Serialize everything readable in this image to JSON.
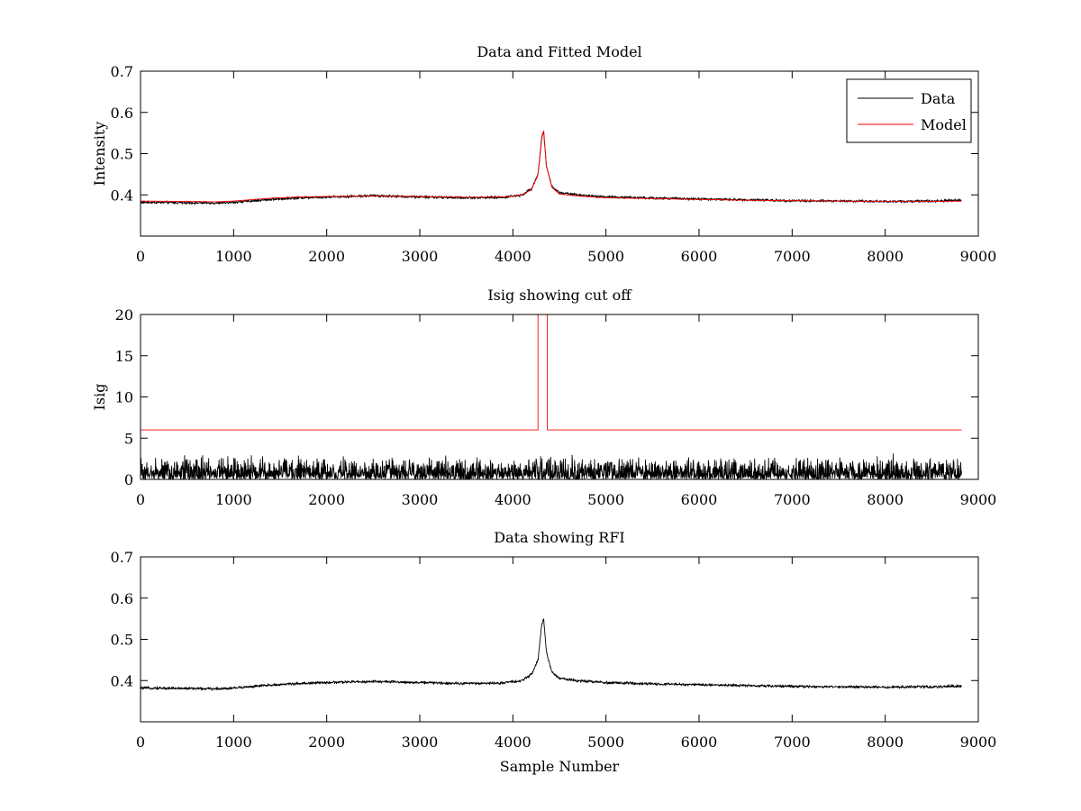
{
  "chart_data": [
    {
      "type": "line",
      "title": "Data and Fitted Model",
      "xlabel": "",
      "ylabel": "Intensity",
      "xlim": [
        0,
        9000
      ],
      "ylim": [
        0.3,
        0.7
      ],
      "xticks": [
        0,
        1000,
        2000,
        3000,
        4000,
        5000,
        6000,
        7000,
        8000,
        9000
      ],
      "yticks": [
        0.4,
        0.5,
        0.6,
        0.7
      ],
      "yticklabels": [
        "0.4",
        "0.5",
        "0.6",
        "0.7"
      ],
      "legend": "top-right",
      "grid": false,
      "series": [
        {
          "name": "Data",
          "color": "#000000",
          "noise_amplitude": 0.004,
          "points": [
            [
              0,
              0.382
            ],
            [
              500,
              0.381
            ],
            [
              800,
              0.38
            ],
            [
              1000,
              0.382
            ],
            [
              1400,
              0.389
            ],
            [
              1700,
              0.393
            ],
            [
              2000,
              0.395
            ],
            [
              2500,
              0.398
            ],
            [
              3000,
              0.395
            ],
            [
              3500,
              0.393
            ],
            [
              3900,
              0.394
            ],
            [
              4100,
              0.4
            ],
            [
              4200,
              0.415
            ],
            [
              4270,
              0.45
            ],
            [
              4310,
              0.54
            ],
            [
              4330,
              0.555
            ],
            [
              4360,
              0.47
            ],
            [
              4420,
              0.42
            ],
            [
              4500,
              0.405
            ],
            [
              4700,
              0.4
            ],
            [
              5000,
              0.395
            ],
            [
              5500,
              0.392
            ],
            [
              6000,
              0.39
            ],
            [
              6500,
              0.388
            ],
            [
              7000,
              0.386
            ],
            [
              7500,
              0.385
            ],
            [
              8000,
              0.384
            ],
            [
              8500,
              0.385
            ],
            [
              8820,
              0.387
            ]
          ]
        },
        {
          "name": "Model",
          "color": "#ff0000",
          "noise_amplitude": 0,
          "points": [
            [
              0,
              0.385
            ],
            [
              500,
              0.384
            ],
            [
              800,
              0.383
            ],
            [
              1000,
              0.385
            ],
            [
              1400,
              0.392
            ],
            [
              1700,
              0.395
            ],
            [
              2000,
              0.396
            ],
            [
              2500,
              0.397
            ],
            [
              3000,
              0.396
            ],
            [
              3500,
              0.394
            ],
            [
              3900,
              0.395
            ],
            [
              4100,
              0.4
            ],
            [
              4200,
              0.413
            ],
            [
              4270,
              0.448
            ],
            [
              4310,
              0.535
            ],
            [
              4330,
              0.56
            ],
            [
              4360,
              0.47
            ],
            [
              4420,
              0.418
            ],
            [
              4500,
              0.402
            ],
            [
              4700,
              0.397
            ],
            [
              5000,
              0.393
            ],
            [
              5500,
              0.391
            ],
            [
              6000,
              0.389
            ],
            [
              6500,
              0.387
            ],
            [
              7000,
              0.386
            ],
            [
              7500,
              0.385
            ],
            [
              8000,
              0.384
            ],
            [
              8500,
              0.384
            ],
            [
              8820,
              0.385
            ]
          ]
        }
      ]
    },
    {
      "type": "line",
      "title": "Isig showing cut off",
      "xlabel": "",
      "ylabel": "Isig",
      "xlim": [
        0,
        9000
      ],
      "ylim": [
        0,
        20
      ],
      "xticks": [
        0,
        1000,
        2000,
        3000,
        4000,
        5000,
        6000,
        7000,
        8000,
        9000
      ],
      "yticks": [
        0,
        5,
        10,
        15,
        20
      ],
      "yticklabels": [
        "0",
        "5",
        "10",
        "15",
        "20"
      ],
      "grid": false,
      "series": [
        {
          "name": "",
          "color": "#000000",
          "style": "noise",
          "x_range": [
            0,
            8820
          ],
          "noise_max": 3.3
        },
        {
          "name": "",
          "color": "#ff0000",
          "style": "step",
          "points": [
            [
              0,
              6
            ],
            [
              4270,
              6
            ],
            [
              4270,
              20
            ],
            [
              4370,
              20
            ],
            [
              4370,
              6
            ],
            [
              8820,
              6
            ]
          ]
        }
      ]
    },
    {
      "type": "line",
      "title": "Data showing RFI",
      "xlabel": "Sample Number",
      "ylabel": "",
      "xlim": [
        0,
        9000
      ],
      "ylim": [
        0.3,
        0.7
      ],
      "xticks": [
        0,
        1000,
        2000,
        3000,
        4000,
        5000,
        6000,
        7000,
        8000,
        9000
      ],
      "yticks": [
        0.4,
        0.5,
        0.6,
        0.7
      ],
      "yticklabels": [
        "0.4",
        "0.5",
        "0.6",
        "0.7"
      ],
      "grid": false,
      "series": [
        {
          "name": "",
          "color": "#000000",
          "noise_amplitude": 0.004,
          "points": [
            [
              0,
              0.382
            ],
            [
              500,
              0.381
            ],
            [
              800,
              0.38
            ],
            [
              1000,
              0.382
            ],
            [
              1400,
              0.389
            ],
            [
              1700,
              0.393
            ],
            [
              2000,
              0.395
            ],
            [
              2500,
              0.398
            ],
            [
              3000,
              0.395
            ],
            [
              3500,
              0.393
            ],
            [
              3900,
              0.394
            ],
            [
              4100,
              0.4
            ],
            [
              4200,
              0.415
            ],
            [
              4270,
              0.45
            ],
            [
              4310,
              0.535
            ],
            [
              4330,
              0.55
            ],
            [
              4360,
              0.47
            ],
            [
              4420,
              0.42
            ],
            [
              4500,
              0.405
            ],
            [
              4700,
              0.4
            ],
            [
              5000,
              0.395
            ],
            [
              5500,
              0.392
            ],
            [
              6000,
              0.39
            ],
            [
              6500,
              0.388
            ],
            [
              7000,
              0.386
            ],
            [
              7500,
              0.385
            ],
            [
              8000,
              0.384
            ],
            [
              8500,
              0.385
            ],
            [
              8820,
              0.387
            ]
          ]
        }
      ]
    }
  ]
}
